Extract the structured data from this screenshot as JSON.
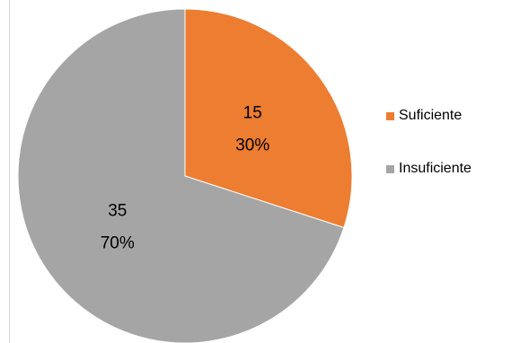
{
  "chart_data": {
    "type": "pie",
    "categories": [
      "Suficiente",
      "Insuficiente"
    ],
    "values": [
      15,
      35
    ],
    "percentages": [
      "30%",
      "70%"
    ],
    "colors": [
      "#ed7d31",
      "#a5a5a5"
    ],
    "title": "",
    "legend_position": "right",
    "start_angle_deg": 0,
    "direction": "clockwise"
  }
}
